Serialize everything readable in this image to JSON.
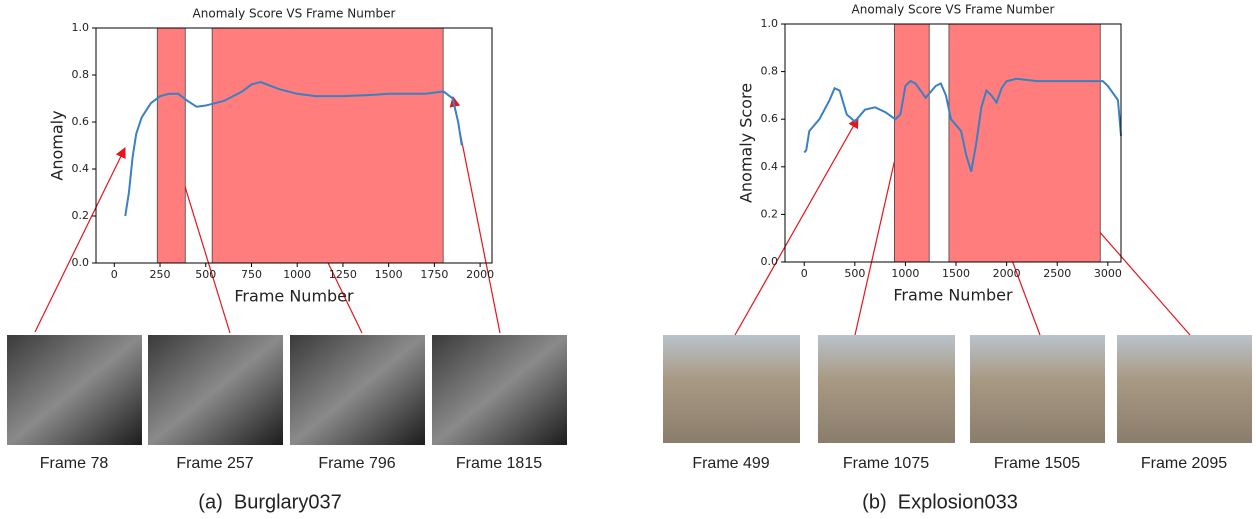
{
  "chart_data": [
    {
      "type": "line",
      "title": "Anomaly Score VS Frame Number",
      "x_label": "Frame Number",
      "y_label": "Anomaly",
      "xlim": [
        -100,
        2065
      ],
      "xticks": [
        0,
        250,
        500,
        750,
        1000,
        1250,
        1500,
        1750,
        2000
      ],
      "ylim": [
        0,
        1
      ],
      "yticks": [
        {
          "value": 0,
          "label": "0.0"
        },
        0.2,
        0.4,
        0.6,
        0.8,
        {
          "value": 1,
          "label": "1.0"
        }
      ],
      "shaded_regions": [
        [
          235,
          388
        ],
        [
          535,
          1798
        ]
      ],
      "region_color": "#ff7d7d",
      "series": [
        {
          "color": "#3a80c2",
          "x": [
            60,
            80,
            100,
            120,
            150,
            200,
            250,
            300,
            350,
            400,
            450,
            500,
            600,
            700,
            750,
            800,
            900,
            1000,
            1100,
            1250,
            1400,
            1500,
            1600,
            1700,
            1800,
            1850,
            1880,
            1900
          ],
          "values": [
            0.2,
            0.3,
            0.45,
            0.55,
            0.62,
            0.68,
            0.71,
            0.72,
            0.72,
            0.69,
            0.665,
            0.67,
            0.69,
            0.73,
            0.76,
            0.77,
            0.74,
            0.72,
            0.71,
            0.71,
            0.715,
            0.72,
            0.72,
            0.72,
            0.73,
            0.7,
            0.6,
            0.5
          ]
        }
      ]
    },
    {
      "type": "line",
      "title": "Anomaly Score VS Frame Number",
      "x_label": "Frame Number",
      "y_label": "Anomaly Score",
      "xlim": [
        -190,
        3130
      ],
      "xticks": [
        0,
        500,
        1000,
        1500,
        2000,
        2500,
        3000
      ],
      "ylim": [
        0,
        1
      ],
      "yticks": [
        {
          "value": 0,
          "label": "0.0"
        },
        0.2,
        0.4,
        0.6,
        0.8,
        {
          "value": 1,
          "label": "1.0"
        }
      ],
      "shaded_regions": [
        [
          891,
          1235
        ],
        [
          1430,
          2925
        ]
      ],
      "region_color": "#ff7d7d",
      "series": [
        {
          "color": "#3a80c2",
          "x": [
            0,
            20,
            50,
            150,
            250,
            300,
            350,
            420,
            500,
            600,
            700,
            800,
            900,
            950,
            1000,
            1050,
            1100,
            1200,
            1300,
            1350,
            1400,
            1450,
            1550,
            1600,
            1650,
            1700,
            1750,
            1800,
            1850,
            1900,
            1950,
            2000,
            2100,
            2300,
            2500,
            2800,
            2950,
            3000,
            3100,
            3130
          ],
          "values": [
            0.46,
            0.47,
            0.55,
            0.6,
            0.68,
            0.73,
            0.72,
            0.62,
            0.59,
            0.64,
            0.65,
            0.63,
            0.6,
            0.62,
            0.74,
            0.76,
            0.75,
            0.69,
            0.74,
            0.75,
            0.7,
            0.6,
            0.55,
            0.45,
            0.38,
            0.5,
            0.65,
            0.72,
            0.7,
            0.67,
            0.73,
            0.76,
            0.77,
            0.76,
            0.76,
            0.76,
            0.76,
            0.74,
            0.68,
            0.53
          ]
        }
      ]
    }
  ],
  "panels": [
    {
      "caption": "(a)  Burglary037",
      "frames": [
        "Frame 78",
        "Frame 257",
        "Frame 796",
        "Frame 1815"
      ]
    },
    {
      "caption": "(b)  Explosion033",
      "frames": [
        "Frame 499",
        "Frame 1075",
        "Frame 1505",
        "Frame 2095"
      ]
    }
  ]
}
